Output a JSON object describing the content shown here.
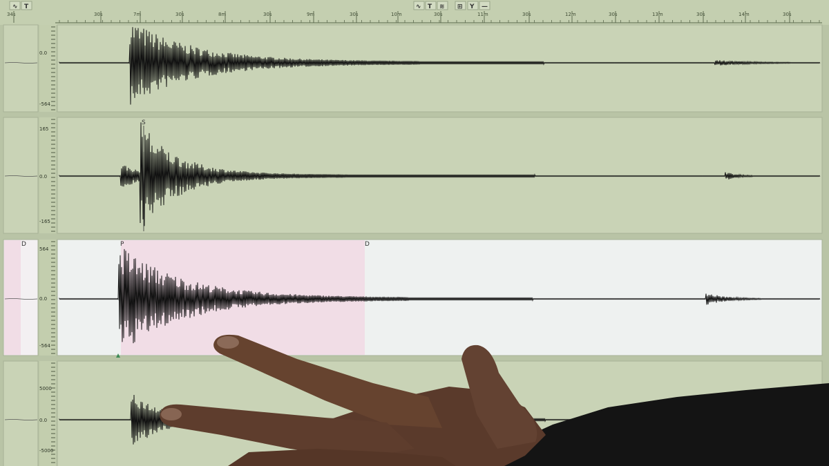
{
  "toolbar": {
    "left_icons": [
      "waveform-icon",
      "text-tool-icon"
    ],
    "right_icons": [
      "waveform-icon",
      "text-tool-icon",
      "filter-icon",
      "grid-icon",
      "y-scale-icon",
      "minus-icon"
    ],
    "right_labels": [
      "∿",
      "T",
      "≋",
      "⊞",
      "Y",
      "—"
    ],
    "left_labels": [
      "∿",
      "T"
    ]
  },
  "time_axis": {
    "labels": [
      "34s",
      "30s",
      "7m",
      "30s",
      "8m",
      "30s",
      "9m",
      "30s",
      "10m",
      "30s",
      "11m",
      "30s",
      "12m",
      "30s",
      "13m",
      "30s",
      "14m",
      "30s"
    ]
  },
  "channels": [
    {
      "y_labels": [
        "0.0",
        "-564"
      ],
      "phase_labels": [],
      "highlighted": false
    },
    {
      "y_labels": [
        "165",
        "0.0",
        "-165"
      ],
      "phase_labels": [
        "S"
      ],
      "highlighted": false
    },
    {
      "y_labels": [
        "564",
        "0.0",
        "-564"
      ],
      "phase_labels": [
        "P",
        "D"
      ],
      "mini_label": "D",
      "highlighted": true
    },
    {
      "y_labels": [
        "5000",
        "0.0",
        "-5000"
      ],
      "phase_labels": [],
      "highlighted": false
    }
  ],
  "colors": {
    "panel_bg": "#c9d3b6",
    "selected_panel_bg": "#eef1f0",
    "pick_window": "#f1dde6",
    "trace": "#111111",
    "skin": "#5e3d2e",
    "sleeve": "#141414"
  }
}
